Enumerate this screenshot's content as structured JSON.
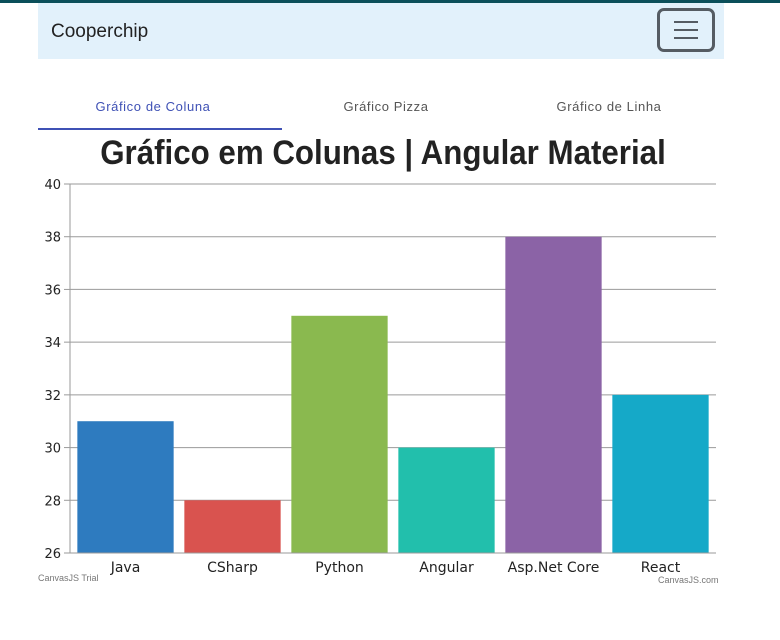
{
  "navbar": {
    "brand": "Cooperchip",
    "menu_icon": "hamburger-icon"
  },
  "tabs": [
    {
      "label": "Gráfico de Coluna",
      "active": true
    },
    {
      "label": "Gráfico Pizza",
      "active": false
    },
    {
      "label": "Gráfico de Linha",
      "active": false
    }
  ],
  "colors": {
    "navbar_bg": "#e2f1fb",
    "active_tab": "#3f51b5"
  },
  "chart_data": {
    "type": "bar",
    "title": "Gráfico em Colunas | Angular Material",
    "categories": [
      "Java",
      "CSharp",
      "Python",
      "Angular",
      "Asp.Net Core",
      "React"
    ],
    "values": [
      31,
      28,
      35,
      30,
      38,
      32
    ],
    "colors": [
      "#2e7bbf",
      "#d9534f",
      "#8ab94f",
      "#22bfac",
      "#8b63a6",
      "#15a9c8"
    ],
    "ylim": [
      26,
      40
    ],
    "yticks": [
      26,
      28,
      30,
      32,
      34,
      36,
      38,
      40
    ],
    "grid": true,
    "xlabel": "",
    "ylabel": ""
  },
  "credits": {
    "left": "CanvasJS Trial",
    "right": "CanvasJS.com"
  }
}
